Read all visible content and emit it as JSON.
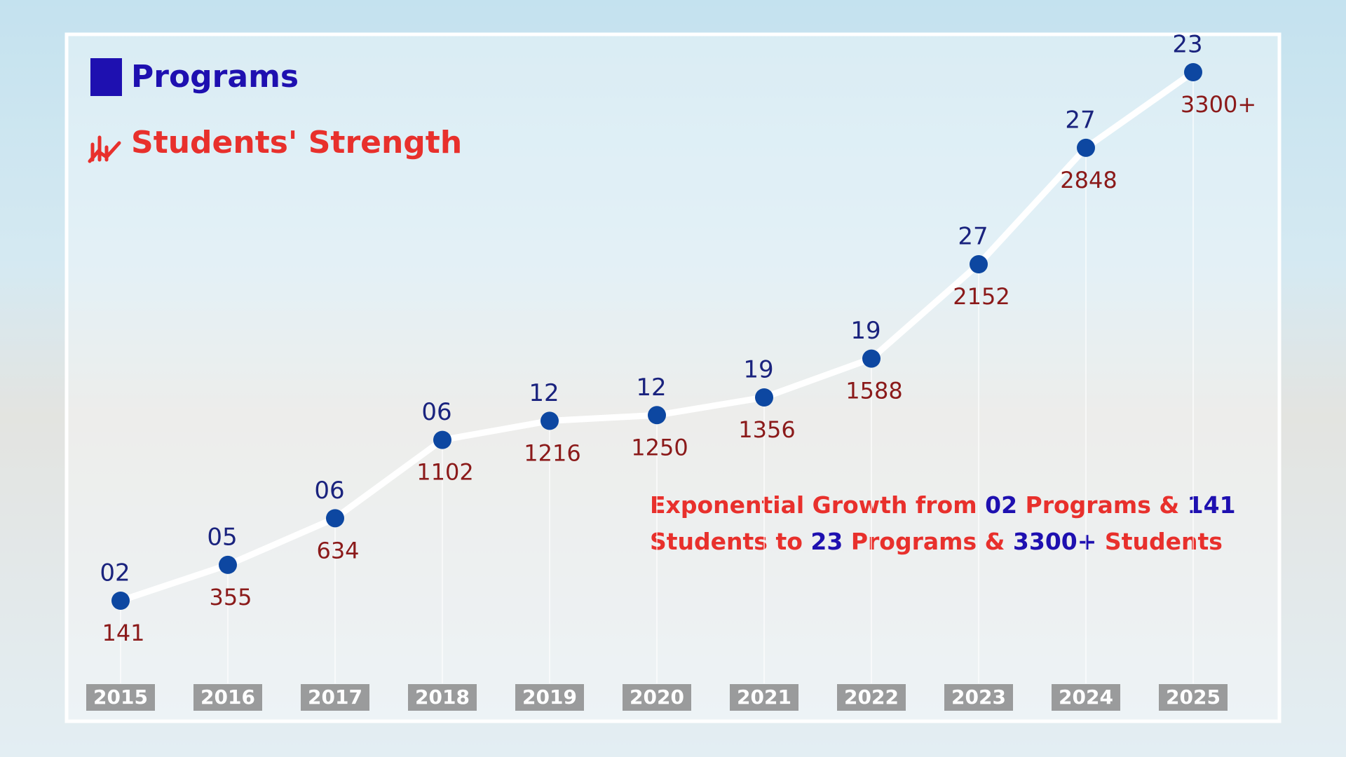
{
  "chart_data": {
    "type": "line",
    "categories": [
      "2015",
      "2016",
      "2017",
      "2018",
      "2019",
      "2020",
      "2021",
      "2022",
      "2023",
      "2024",
      "2025"
    ],
    "series": [
      {
        "name": "Students' Strength",
        "color": "#e8302c",
        "label_color": "#8b1a1a",
        "line_color": "#ffffff",
        "values": [
          141,
          355,
          634,
          1102,
          1216,
          1250,
          1356,
          1588,
          2152,
          2848,
          3300
        ],
        "value_labels": [
          "141",
          "355",
          "634",
          "1102",
          "1216",
          "1250",
          "1356",
          "1588",
          "2152",
          "2848",
          "3300+"
        ]
      },
      {
        "name": "Programs",
        "color": "#1e10b0",
        "label_color": "#1a237e",
        "marker_color": "#0d47a1",
        "values": [
          2,
          5,
          6,
          6,
          12,
          12,
          19,
          19,
          27,
          27,
          23
        ],
        "value_labels": [
          "02",
          "05",
          "06",
          "06",
          "12",
          "12",
          "19",
          "19",
          "27",
          "27",
          "23"
        ]
      }
    ],
    "annotation": [
      {
        "text": "Exponential Growth from",
        "color": "#e8302c"
      },
      {
        "text": "02",
        "color": "#1e10b0"
      },
      {
        "text": "Programs &",
        "color": "#e8302c"
      },
      {
        "text": "141",
        "color": "#1e10b0"
      },
      {
        "text": "Students to",
        "color": "#e8302c"
      },
      {
        "text": "23",
        "color": "#1e10b0"
      },
      {
        "text": "Programs &",
        "color": "#e8302c"
      },
      {
        "text": "3300+",
        "color": "#1e10b0"
      },
      {
        "text": "Students",
        "color": "#e8302c"
      }
    ]
  }
}
